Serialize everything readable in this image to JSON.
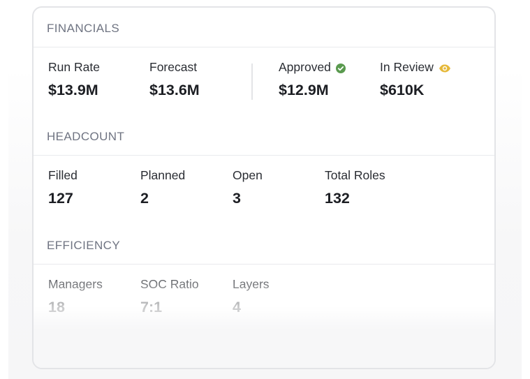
{
  "financials": {
    "title": "FINANCIALS",
    "metrics": [
      {
        "label": "Run Rate",
        "value": "$13.9M"
      },
      {
        "label": "Forecast",
        "value": "$13.6M"
      },
      {
        "label": "Approved",
        "value": "$12.9M",
        "icon": "check-circle-icon",
        "icon_color": "#5a9a4f"
      },
      {
        "label": "In Review",
        "value": "$610K",
        "icon": "eye-icon",
        "icon_color": "#e6b93a"
      }
    ]
  },
  "headcount": {
    "title": "HEADCOUNT",
    "metrics": [
      {
        "label": "Filled",
        "value": "127"
      },
      {
        "label": "Planned",
        "value": "2"
      },
      {
        "label": "Open",
        "value": "3"
      },
      {
        "label": "Total Roles",
        "value": "132"
      }
    ]
  },
  "efficiency": {
    "title": "EFFICIENCY",
    "metrics": [
      {
        "label": "Managers",
        "value": "18"
      },
      {
        "label": "SOC Ratio",
        "value": "7:1"
      },
      {
        "label": "Layers",
        "value": "4"
      }
    ]
  },
  "colors": {
    "approved": "#5a9a4f",
    "in_review": "#e6b93a",
    "section_title": "#6f7482",
    "border": "#e3e4e7"
  }
}
